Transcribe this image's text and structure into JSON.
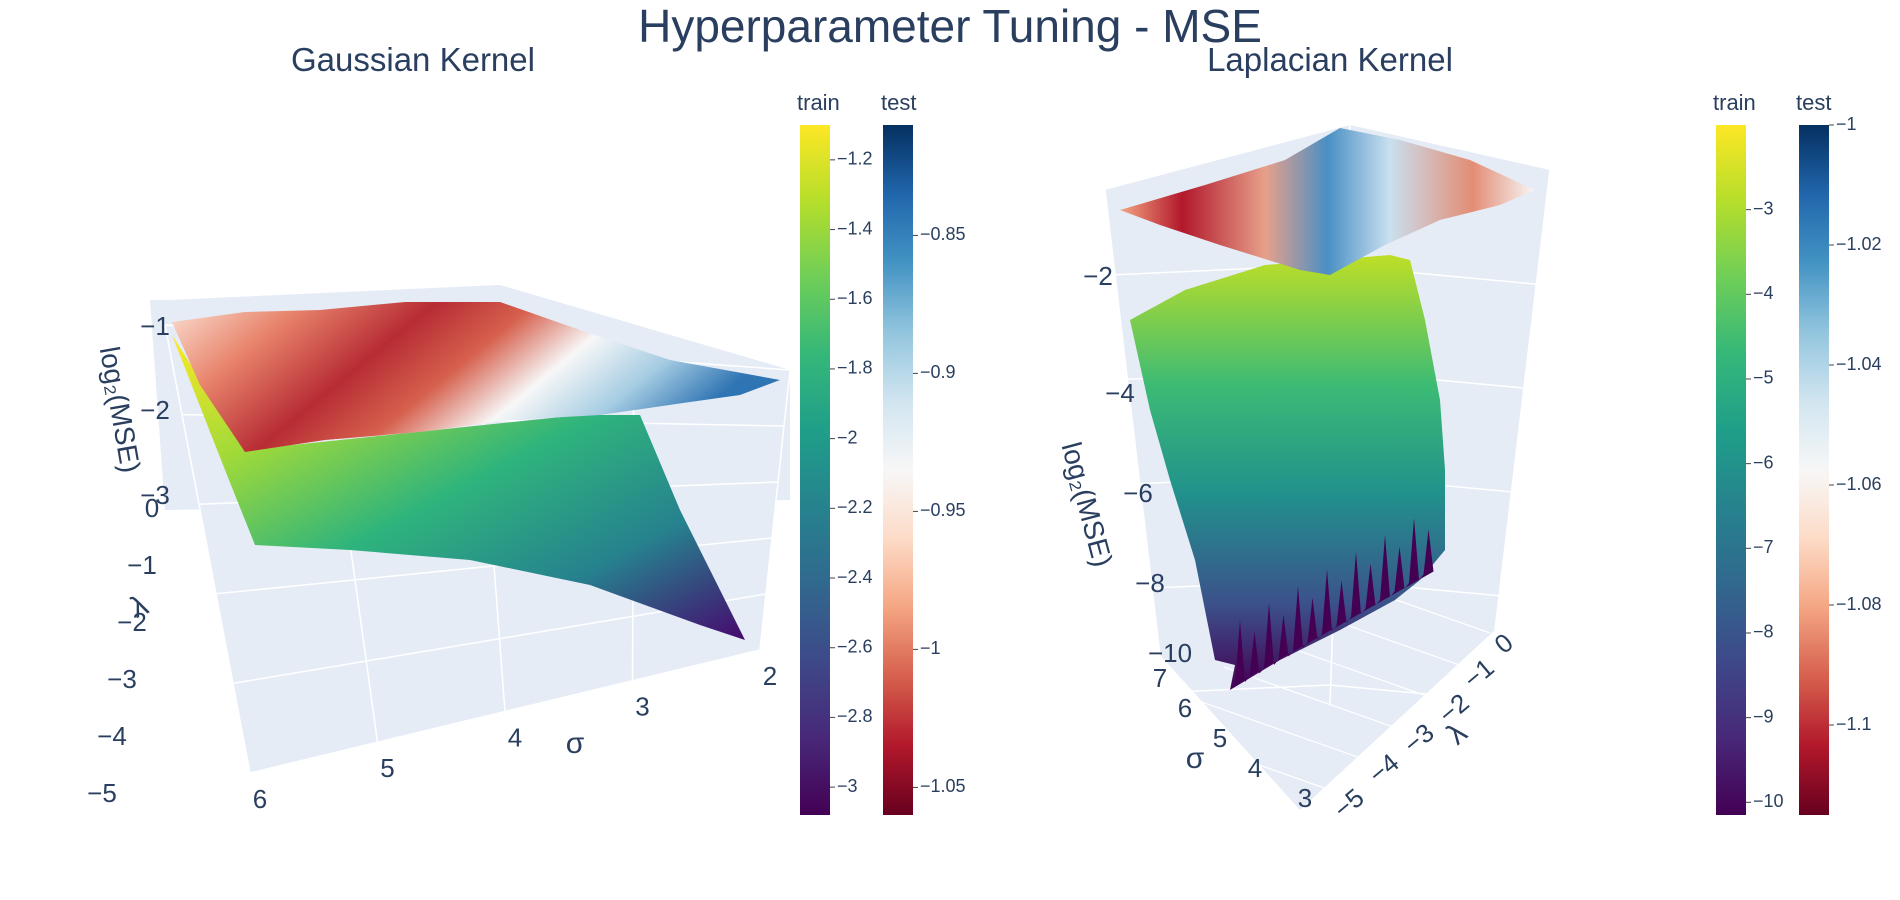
{
  "title": "Hyperparameter Tuning - MSE",
  "chart_data": [
    {
      "type": "surface",
      "title": "Gaussian Kernel",
      "xlabel": "σ",
      "ylabel": "λ",
      "zlabel": "log₂(MSE)",
      "x_ticks": [
        "2",
        "3",
        "4",
        "5",
        "6"
      ],
      "y_ticks": [
        "0",
        "−1",
        "−2",
        "−3",
        "−4",
        "−5"
      ],
      "z_ticks": [
        "−1",
        "−2",
        "−3"
      ],
      "xlim": [
        2,
        6
      ],
      "ylim": [
        -5,
        0
      ],
      "series": [
        {
          "name": "train",
          "colorscale": "Viridis",
          "colorbar_ticks": [
            "−1.2",
            "−1.4",
            "−1.6",
            "−1.8",
            "−2",
            "−2.2",
            "−2.4",
            "−2.6",
            "−2.8",
            "−3"
          ],
          "colorbar_range": [
            -3.08,
            -1.1
          ],
          "range": [
            -3.05,
            -1.1
          ]
        },
        {
          "name": "test",
          "colorscale": "RdBu",
          "colorbar_ticks": [
            "−0.85",
            "−0.9",
            "−0.95",
            "−1",
            "−1.05"
          ],
          "colorbar_range": [
            -1.06,
            -0.81
          ],
          "range": [
            -1.06,
            -0.81
          ]
        }
      ]
    },
    {
      "type": "surface",
      "title": "Laplacian Kernel",
      "xlabel": "σ",
      "ylabel": "λ",
      "zlabel": "log₂(MSE)",
      "x_ticks": [
        "3",
        "4",
        "5",
        "6",
        "7"
      ],
      "y_ticks": [
        "0",
        "−1",
        "−2",
        "−3",
        "−4",
        "−5"
      ],
      "z_ticks": [
        "−2",
        "−4",
        "−6",
        "−8",
        "−10"
      ],
      "xlim": [
        3,
        7
      ],
      "ylim": [
        -5,
        0
      ],
      "series": [
        {
          "name": "train",
          "colorscale": "Viridis",
          "colorbar_ticks": [
            "−3",
            "−4",
            "−5",
            "−6",
            "−7",
            "−8",
            "−9",
            "−10"
          ],
          "colorbar_range": [
            -10.15,
            -2.0
          ],
          "range": [
            -10.15,
            -2.0
          ]
        },
        {
          "name": "test",
          "colorscale": "RdBu",
          "colorbar_ticks": [
            "−1",
            "−1.02",
            "−1.04",
            "−1.06",
            "−1.08",
            "−1.1"
          ],
          "colorbar_range": [
            -1.115,
            -1.0
          ],
          "range": [
            -1.115,
            -1.0
          ]
        }
      ]
    }
  ]
}
